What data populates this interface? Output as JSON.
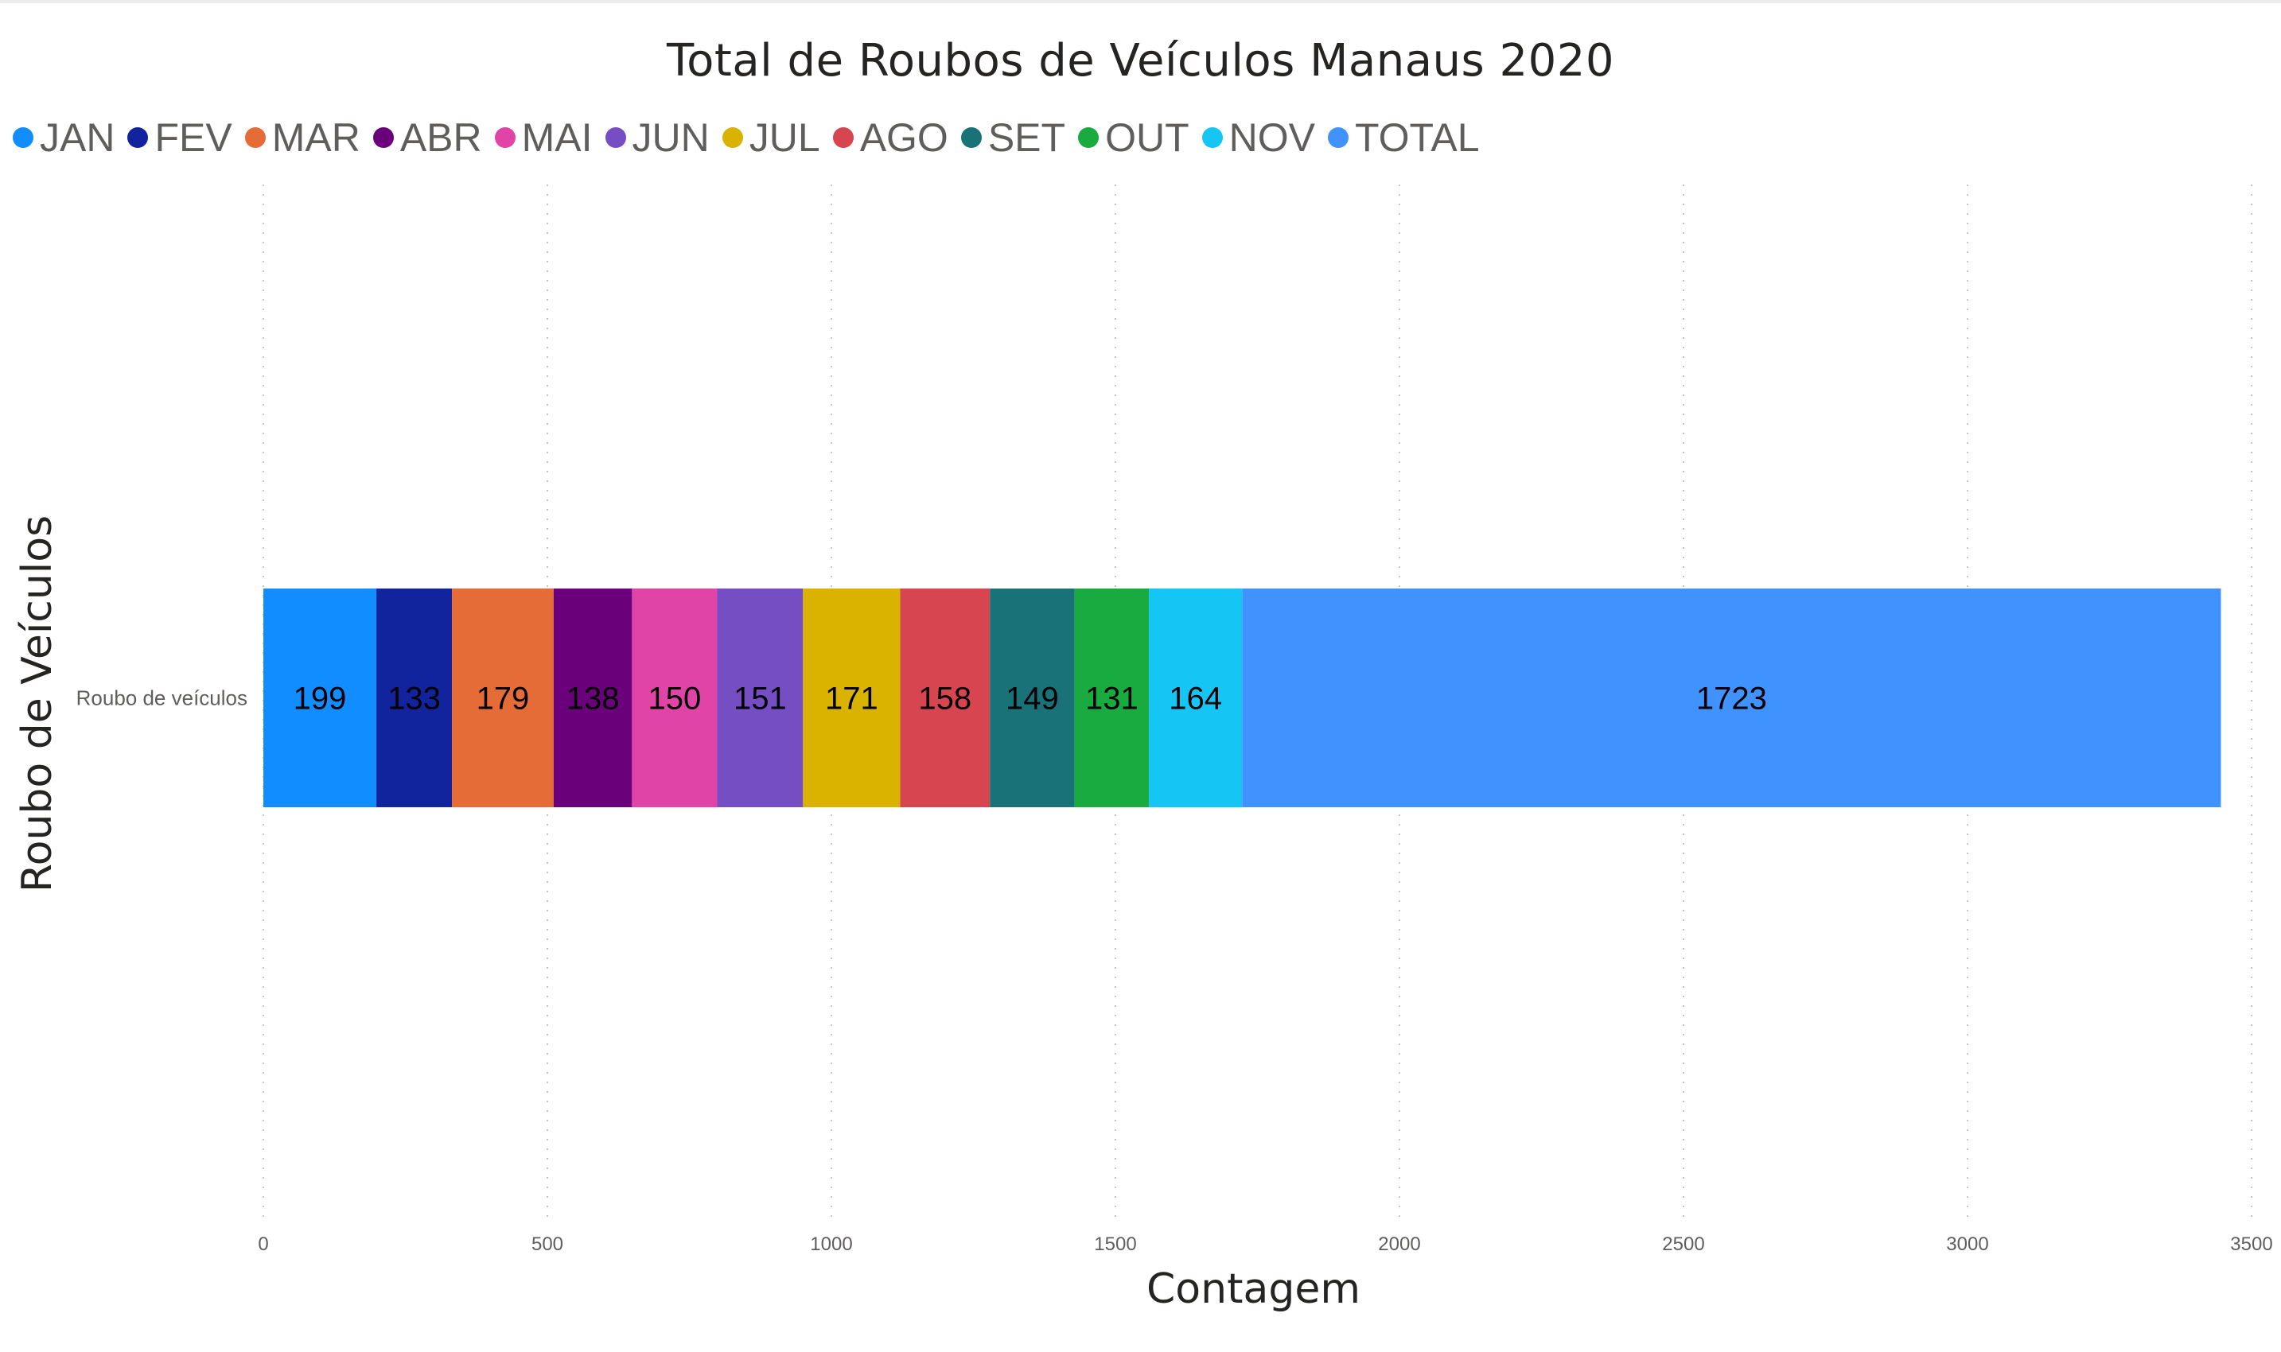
{
  "chart_data": {
    "type": "bar",
    "orientation": "horizontal",
    "stacked": true,
    "title": "Total de Roubos de Veículos Manaus 2020",
    "xlabel": "Contagem",
    "ylabel": "Roubo de Veículos",
    "categories": [
      "Roubo de veículos"
    ],
    "xlim": [
      0,
      3500
    ],
    "xticks": [
      "0",
      "500",
      "1000",
      "1500",
      "2000",
      "2500",
      "3000",
      "3500"
    ],
    "grid": "vertical-dotted",
    "legend_position": "top-left",
    "series": [
      {
        "name": "JAN",
        "values": [
          199
        ],
        "color": "#118DFF"
      },
      {
        "name": "FEV",
        "values": [
          133
        ],
        "color": "#12239E"
      },
      {
        "name": "MAR",
        "values": [
          179
        ],
        "color": "#E66C37"
      },
      {
        "name": "ABR",
        "values": [
          138
        ],
        "color": "#6B007B"
      },
      {
        "name": "MAI",
        "values": [
          150
        ],
        "color": "#E044A7"
      },
      {
        "name": "JUN",
        "values": [
          151
        ],
        "color": "#744EC2"
      },
      {
        "name": "JUL",
        "values": [
          171
        ],
        "color": "#D9B300"
      },
      {
        "name": "AGO",
        "values": [
          158
        ],
        "color": "#D64550"
      },
      {
        "name": "SET",
        "values": [
          149
        ],
        "color": "#197278"
      },
      {
        "name": "OUT",
        "values": [
          131
        ],
        "color": "#1AAB40"
      },
      {
        "name": "NOV",
        "values": [
          164
        ],
        "color": "#15C6F4"
      },
      {
        "name": "TOTAL",
        "values": [
          1723
        ],
        "color": "#4092FF"
      }
    ]
  }
}
